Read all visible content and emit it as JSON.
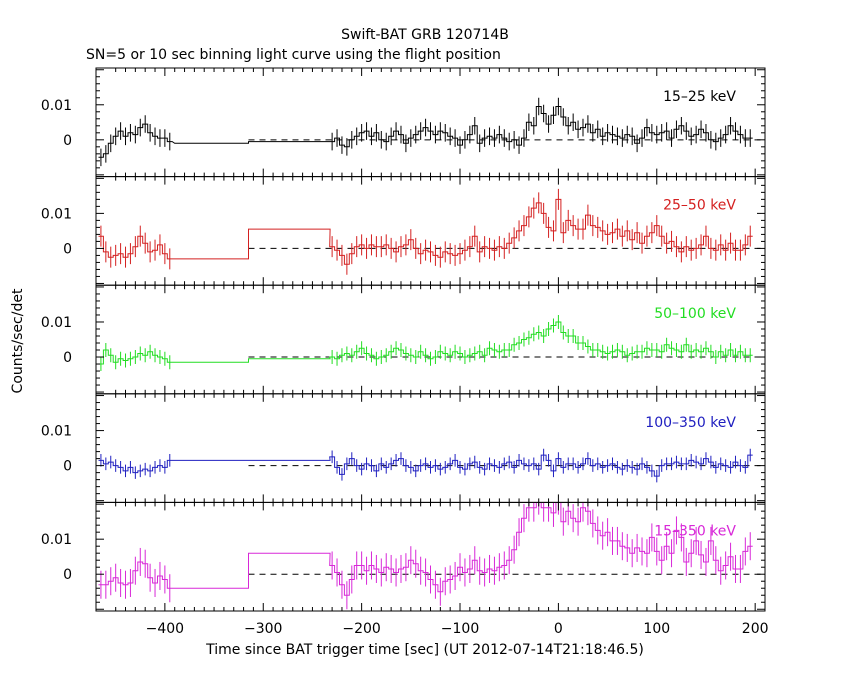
{
  "title": "Swift-BAT GRB 120714B",
  "subtitle": "SN=5 or 10 sec binning light curve using the flight position",
  "colors": {
    "black": "#000000",
    "red": "#d42020",
    "green": "#22dd22",
    "blue": "#2020c0",
    "magenta": "#d828d8"
  },
  "chart_data": {
    "type": "line",
    "title": "Swift-BAT GRB 120714B",
    "subtitle": "SN=5 or 10 sec binning light curve using the flight position",
    "xlabel": "Time since BAT trigger time [sec] (UT 2012-07-14T21:18:46.5)",
    "ylabel": "Counts/sec/det",
    "xlim": [
      -470,
      210
    ],
    "x_ticks": [
      -400,
      -300,
      -200,
      -100,
      0,
      100,
      200
    ],
    "x_tick_labels": [
      "−400",
      "−300",
      "−200",
      "−100",
      "0",
      "100",
      "200"
    ],
    "y_ticks": [
      0,
      0.01
    ],
    "y_tick_labels": [
      "0",
      "0.01"
    ],
    "panels": [
      {
        "name": "15–25 keV",
        "color": "#000000",
        "ylim": [
          -0.0105,
          0.0205
        ],
        "long_bins": [
          [
            -390,
            -315,
            -0.001
          ],
          [
            -315,
            -232,
            -0.0005
          ]
        ],
        "x": [
          -465,
          -460,
          -455,
          -450,
          -445,
          -440,
          -435,
          -430,
          -425,
          -420,
          -415,
          -410,
          -405,
          -400,
          -395,
          -230,
          -225,
          -220,
          -215,
          -210,
          -205,
          -200,
          -195,
          -190,
          -185,
          -180,
          -175,
          -170,
          -165,
          -160,
          -155,
          -150,
          -145,
          -140,
          -135,
          -130,
          -125,
          -120,
          -115,
          -110,
          -105,
          -100,
          -95,
          -90,
          -85,
          -80,
          -75,
          -70,
          -65,
          -60,
          -55,
          -50,
          -45,
          -40,
          -35,
          -30,
          -25,
          -20,
          -15,
          -10,
          -5,
          0,
          5,
          10,
          15,
          20,
          25,
          30,
          35,
          40,
          45,
          50,
          55,
          60,
          65,
          70,
          75,
          80,
          85,
          90,
          95,
          100,
          105,
          110,
          115,
          120,
          125,
          130,
          135,
          140,
          145,
          150,
          155,
          160,
          165,
          170,
          175,
          180,
          185,
          190,
          195
        ],
        "y": [
          -0.005,
          -0.004,
          -0.001,
          0.001,
          0.0025,
          0.001,
          0.002,
          0.0015,
          0.0035,
          0.0045,
          0.002,
          0.001,
          0.0005,
          0.0005,
          -0.0005,
          -0.0005,
          0.0005,
          -0.0015,
          -0.002,
          0.0,
          0.001,
          0.002,
          0.0025,
          0.001,
          0.002,
          0.0,
          -0.0005,
          0.001,
          0.0025,
          0.0015,
          -0.001,
          0.0005,
          0.0015,
          0.0025,
          0.0035,
          0.0025,
          0.0015,
          0.0025,
          0.002,
          0.001,
          0.0005,
          -0.0015,
          0.0,
          0.0015,
          0.004,
          -0.001,
          0.0005,
          0.001,
          0.0005,
          0.0015,
          0.0005,
          -0.0005,
          0.0,
          -0.0015,
          0.0005,
          0.005,
          0.004,
          0.0095,
          0.0075,
          0.0045,
          0.007,
          0.0095,
          0.0065,
          0.004,
          0.005,
          0.003,
          0.0035,
          0.0045,
          0.002,
          0.003,
          0.001,
          0.002,
          0.0015,
          0.001,
          0.0005,
          0.0015,
          0.001,
          -0.001,
          0.0005,
          0.0035,
          0.002,
          0.0015,
          0.002,
          0.0025,
          0.0005,
          0.003,
          0.004,
          0.0025,
          0.001,
          0.0015,
          0.003,
          0.002,
          0.0,
          -0.0005,
          0.0005,
          0.0015,
          0.004,
          0.0025,
          0.0015,
          0.0005,
          0.0005
        ],
        "err": 0.0025
      },
      {
        "name": "25–50 keV",
        "color": "#d42020",
        "ylim": [
          -0.0105,
          0.0205
        ],
        "long_bins": [
          [
            -390,
            -315,
            -0.003
          ],
          [
            -315,
            -232,
            0.0055
          ]
        ],
        "x": [
          -465,
          -460,
          -455,
          -450,
          -445,
          -440,
          -435,
          -430,
          -425,
          -420,
          -415,
          -410,
          -405,
          -400,
          -395,
          -230,
          -225,
          -220,
          -215,
          -210,
          -205,
          -200,
          -195,
          -190,
          -185,
          -180,
          -175,
          -170,
          -165,
          -160,
          -155,
          -150,
          -145,
          -140,
          -135,
          -130,
          -125,
          -120,
          -115,
          -110,
          -105,
          -100,
          -95,
          -90,
          -85,
          -80,
          -75,
          -70,
          -65,
          -60,
          -55,
          -50,
          -45,
          -40,
          -35,
          -30,
          -25,
          -20,
          -15,
          -10,
          -5,
          0,
          5,
          10,
          15,
          20,
          25,
          30,
          35,
          40,
          45,
          50,
          55,
          60,
          65,
          70,
          75,
          80,
          85,
          90,
          95,
          100,
          105,
          110,
          115,
          120,
          125,
          130,
          135,
          140,
          145,
          150,
          155,
          160,
          165,
          170,
          175,
          180,
          185,
          190,
          195
        ],
        "y": [
          0.0035,
          -0.001,
          -0.0025,
          -0.002,
          -0.0015,
          -0.0025,
          -0.0015,
          0.0005,
          0.0035,
          0.0015,
          -0.001,
          -0.0005,
          0.001,
          -0.0015,
          -0.003,
          0.0005,
          -0.0005,
          -0.002,
          -0.0045,
          -0.0015,
          0.0005,
          0.001,
          0.0,
          0.001,
          0.0005,
          0.0005,
          0.001,
          0.0,
          -0.001,
          0.0005,
          0.001,
          0.0025,
          0.0,
          -0.0015,
          -0.0005,
          -0.001,
          -0.002,
          -0.0025,
          -0.001,
          -0.0015,
          -0.002,
          -0.0015,
          -0.0005,
          0.0005,
          0.0035,
          -0.001,
          0.0005,
          0.0,
          -0.0005,
          0.0005,
          0.0,
          0.0015,
          0.003,
          0.005,
          0.0065,
          0.009,
          0.0115,
          0.013,
          0.01,
          0.006,
          0.005,
          0.014,
          0.0045,
          0.008,
          0.0065,
          0.0055,
          0.0055,
          0.0095,
          0.0065,
          0.006,
          0.005,
          0.004,
          0.0045,
          0.0055,
          0.0035,
          0.005,
          0.0025,
          0.0045,
          0.0015,
          0.0035,
          0.0045,
          0.0065,
          0.0035,
          0.0015,
          0.002,
          0.0005,
          -0.001,
          0.0005,
          -0.0005,
          0.0,
          0.001,
          0.0035,
          0.0,
          -0.0005,
          0.001,
          -0.0005,
          0.0015,
          -0.0005,
          -0.0005,
          0.001,
          0.0035
        ],
        "err": 0.003
      },
      {
        "name": "50–100 keV",
        "color": "#22dd22",
        "ylim": [
          -0.0105,
          0.0205
        ],
        "long_bins": [
          [
            -390,
            -315,
            -0.0015
          ],
          [
            -315,
            -232,
            -0.0005
          ]
        ],
        "x": [
          -465,
          -460,
          -455,
          -450,
          -445,
          -440,
          -435,
          -430,
          -425,
          -420,
          -415,
          -410,
          -405,
          -400,
          -395,
          -230,
          -225,
          -220,
          -215,
          -210,
          -205,
          -200,
          -195,
          -190,
          -185,
          -180,
          -175,
          -170,
          -165,
          -160,
          -155,
          -150,
          -145,
          -140,
          -135,
          -130,
          -125,
          -120,
          -115,
          -110,
          -105,
          -100,
          -95,
          -90,
          -85,
          -80,
          -75,
          -70,
          -65,
          -60,
          -55,
          -50,
          -45,
          -40,
          -35,
          -30,
          -25,
          -20,
          -15,
          -10,
          -5,
          0,
          5,
          10,
          15,
          20,
          25,
          30,
          35,
          40,
          45,
          50,
          55,
          60,
          65,
          70,
          75,
          80,
          85,
          90,
          95,
          100,
          105,
          110,
          115,
          120,
          125,
          130,
          135,
          140,
          145,
          150,
          155,
          160,
          165,
          170,
          175,
          180,
          185,
          190,
          195
        ],
        "y": [
          -0.002,
          0.002,
          0.0005,
          -0.0015,
          -0.0005,
          -0.001,
          -0.0005,
          0.0,
          0.001,
          0.0005,
          0.0015,
          0.0005,
          0.0,
          -0.0005,
          -0.0015,
          0.0,
          -0.0005,
          0.0005,
          0.001,
          0.0005,
          0.0015,
          0.0025,
          0.001,
          0.0005,
          -0.0005,
          0.0,
          0.0005,
          0.0015,
          0.0025,
          0.002,
          0.001,
          0.0005,
          0.0,
          0.0015,
          0.0005,
          -0.0005,
          0.0,
          0.0015,
          0.001,
          0.0005,
          0.0015,
          0.001,
          0.0,
          0.0005,
          0.001,
          0.0015,
          0.0005,
          0.0025,
          0.002,
          0.0015,
          0.002,
          0.002,
          0.0035,
          0.004,
          0.005,
          0.0055,
          0.0065,
          0.007,
          0.006,
          0.008,
          0.009,
          0.01,
          0.007,
          0.006,
          0.006,
          0.004,
          0.004,
          0.003,
          0.002,
          0.002,
          0.0015,
          0.001,
          0.0015,
          0.002,
          0.0015,
          0.0005,
          0.001,
          0.0015,
          0.0015,
          0.0025,
          0.002,
          0.002,
          0.0015,
          0.0035,
          0.0025,
          0.002,
          0.0015,
          0.0035,
          0.0015,
          0.002,
          0.0015,
          0.0025,
          0.0015,
          0.0,
          0.0015,
          0.0005,
          0.002,
          0.0005,
          0.0015,
          0.0005,
          0.0005
        ],
        "err": 0.002
      },
      {
        "name": "100–350 keV",
        "color": "#2020c0",
        "ylim": [
          -0.0105,
          0.0205
        ],
        "long_bins": [
          [
            -390,
            -315,
            0.0015
          ],
          [
            -315,
            -232,
            0.0015
          ]
        ],
        "x": [
          -465,
          -460,
          -455,
          -450,
          -445,
          -440,
          -435,
          -430,
          -425,
          -420,
          -415,
          -410,
          -405,
          -400,
          -395,
          -230,
          -225,
          -220,
          -215,
          -210,
          -205,
          -200,
          -195,
          -190,
          -185,
          -180,
          -175,
          -170,
          -165,
          -160,
          -155,
          -150,
          -145,
          -140,
          -135,
          -130,
          -125,
          -120,
          -115,
          -110,
          -105,
          -100,
          -95,
          -90,
          -85,
          -80,
          -75,
          -70,
          -65,
          -60,
          -55,
          -50,
          -45,
          -40,
          -35,
          -30,
          -25,
          -20,
          -15,
          -10,
          -5,
          0,
          5,
          10,
          15,
          20,
          25,
          30,
          35,
          40,
          45,
          50,
          55,
          60,
          65,
          70,
          75,
          80,
          85,
          90,
          95,
          100,
          105,
          110,
          115,
          120,
          125,
          130,
          135,
          140,
          145,
          150,
          155,
          160,
          165,
          170,
          175,
          180,
          185,
          190,
          195
        ],
        "y": [
          0.0015,
          0.0005,
          0.001,
          0.0,
          -0.0005,
          -0.0015,
          -0.0005,
          -0.002,
          -0.0015,
          -0.001,
          -0.0015,
          -0.0005,
          0.0,
          -0.0005,
          0.0015,
          0.0025,
          -0.0005,
          -0.0025,
          0.0005,
          0.002,
          0.0,
          -0.001,
          0.0005,
          0.0,
          -0.0015,
          0.0005,
          -0.0005,
          0.0005,
          0.0015,
          0.002,
          0.0,
          -0.0005,
          -0.0015,
          0.0,
          0.0005,
          -0.0005,
          0.0,
          -0.001,
          -0.0005,
          0.0005,
          0.0015,
          -0.0005,
          -0.001,
          0.0005,
          0.001,
          -0.0005,
          -0.001,
          0.0005,
          0.0,
          -0.0005,
          0.0005,
          0.001,
          -0.0005,
          0.0015,
          0.0005,
          0.0,
          0.0005,
          -0.001,
          0.003,
          0.0015,
          -0.0015,
          0.002,
          -0.0005,
          0.0005,
          0.0005,
          -0.0005,
          0.0005,
          0.002,
          0.0,
          0.0005,
          -0.0005,
          0.0,
          0.0005,
          -0.0005,
          -0.001,
          0.0,
          -0.0005,
          -0.001,
          0.0005,
          -0.0005,
          -0.0015,
          -0.003,
          0.0,
          0.0005,
          0.0005,
          0.001,
          0.0005,
          0.0005,
          0.0015,
          0.001,
          0.0005,
          0.002,
          0.001,
          -0.0005,
          0.0005,
          0.0,
          -0.0005,
          0.001,
          0.0,
          -0.0005,
          0.003
        ],
        "err": 0.0018
      },
      {
        "name": "15–350 keV",
        "color": "#d828d8",
        "ylim": [
          -0.0105,
          0.0205
        ],
        "long_bins": [
          [
            -390,
            -315,
            -0.004
          ],
          [
            -315,
            -232,
            0.006
          ]
        ],
        "x": [
          -465,
          -460,
          -455,
          -450,
          -445,
          -440,
          -435,
          -430,
          -425,
          -420,
          -415,
          -410,
          -405,
          -400,
          -395,
          -230,
          -225,
          -220,
          -215,
          -210,
          -205,
          -200,
          -195,
          -190,
          -185,
          -180,
          -175,
          -170,
          -165,
          -160,
          -155,
          -150,
          -145,
          -140,
          -135,
          -130,
          -125,
          -120,
          -115,
          -110,
          -105,
          -100,
          -95,
          -90,
          -85,
          -80,
          -75,
          -70,
          -65,
          -60,
          -55,
          -50,
          -45,
          -40,
          -35,
          -30,
          -25,
          -20,
          -15,
          -10,
          -5,
          0,
          5,
          10,
          15,
          20,
          25,
          30,
          35,
          40,
          45,
          50,
          55,
          60,
          65,
          70,
          75,
          80,
          85,
          90,
          95,
          100,
          105,
          110,
          115,
          120,
          125,
          130,
          135,
          140,
          145,
          150,
          155,
          160,
          165,
          170,
          175,
          180,
          185,
          190,
          195
        ],
        "y": [
          -0.003,
          -0.003,
          -0.002,
          -0.001,
          -0.0025,
          -0.003,
          -0.0025,
          0.001,
          0.0035,
          0.003,
          -0.001,
          -0.0025,
          -0.0005,
          -0.0015,
          -0.004,
          0.0025,
          0.0005,
          -0.003,
          -0.006,
          -0.0015,
          0.0025,
          0.0025,
          0.001,
          0.0025,
          0.0015,
          0.0005,
          0.002,
          0.0015,
          0.0005,
          0.0015,
          0.002,
          0.004,
          0.003,
          0.001,
          0.0005,
          -0.0015,
          -0.003,
          -0.005,
          -0.002,
          -0.0015,
          -0.0005,
          0.002,
          0.0005,
          0.0015,
          0.004,
          0.001,
          0.0005,
          0.0015,
          0.001,
          0.002,
          0.0025,
          0.004,
          0.007,
          0.012,
          0.016,
          0.019,
          0.019,
          0.021,
          0.019,
          0.019,
          0.0175,
          0.021,
          0.015,
          0.018,
          0.016,
          0.015,
          0.019,
          0.018,
          0.0145,
          0.0125,
          0.011,
          0.012,
          0.0095,
          0.0095,
          0.008,
          0.0075,
          0.006,
          0.0075,
          0.0065,
          0.006,
          0.0105,
          0.0065,
          0.004,
          0.008,
          0.006,
          0.0125,
          0.0105,
          0.0035,
          0.006,
          0.0095,
          0.0055,
          0.0035,
          0.0095,
          0.004,
          0.001,
          0.0025,
          0.005,
          0.0015,
          0.0015,
          0.0065,
          0.008
        ],
        "err": 0.004
      }
    ]
  }
}
